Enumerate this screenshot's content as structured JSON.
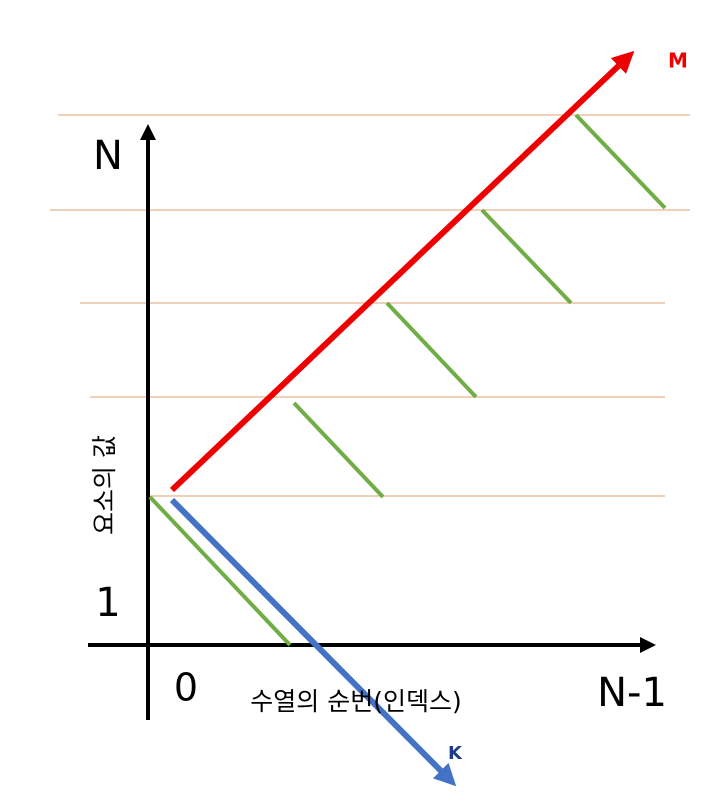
{
  "labels": {
    "y_top": "N",
    "y_one": "1",
    "origin": "0",
    "x_end": "N-1",
    "y_axis_title": "요소의 값",
    "x_axis_title": "수열의 순번(인덱스)",
    "line_m": "M",
    "line_k": "K"
  }
}
